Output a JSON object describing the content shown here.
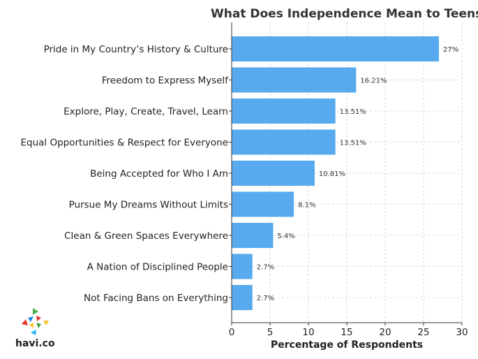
{
  "chart_data": {
    "type": "bar",
    "orientation": "horizontal",
    "title": "What Does Independence Mean to Teens?",
    "xlabel": "Percentage of Respondents",
    "ylabel": "",
    "xlim": [
      0,
      30
    ],
    "xticks": [
      0,
      5,
      10,
      15,
      20,
      25,
      30
    ],
    "grid": true,
    "bar_color": "#56aaed",
    "categories": [
      "Pride in My Country’s History & Culture",
      "Freedom to Express Myself",
      "Explore, Play, Create, Travel, Learn",
      "Equal Opportunities & Respect for Everyone",
      "Being Accepted for Who I Am",
      "Pursue My Dreams Without Limits",
      "Clean & Green Spaces Everywhere",
      "A Nation of Disciplined People",
      "Not Facing Bans on Everything"
    ],
    "values": [
      27,
      16.21,
      13.51,
      13.51,
      10.81,
      8.1,
      5.4,
      2.7,
      2.7
    ],
    "value_labels": [
      "27%",
      "16.21%",
      "13.51%",
      "13.51%",
      "10.81%",
      "8.1%",
      "5.4%",
      "2.7%",
      "2.7%"
    ]
  },
  "brand": {
    "name": "havi.co",
    "logo_icon": "havi-triangles-logo-icon",
    "logo_colors": [
      "#4caf50",
      "#e53935",
      "#1e88e5",
      "#fbc02d",
      "#43a047",
      "#f57c00",
      "#8e24aa",
      "#29b6f6",
      "#e53935"
    ]
  }
}
